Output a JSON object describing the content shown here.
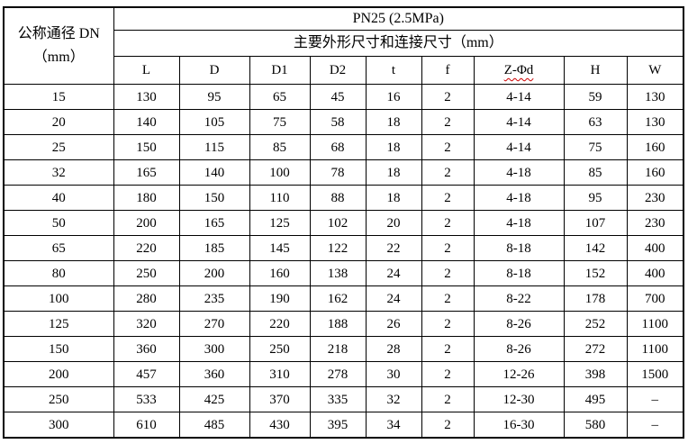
{
  "table": {
    "corner_header": {
      "line1": "公称通径 DN",
      "line2": "（mm）"
    },
    "pressure_header": "PN25 (2.5MPa)",
    "dimensions_header": "主要外形尺寸和连接尺寸（mm）",
    "columns": [
      "L",
      "D",
      "D1",
      "D2",
      "t",
      "f",
      "Z-Φd",
      "H",
      "W"
    ],
    "rows": [
      {
        "dn": "15",
        "values": [
          "130",
          "95",
          "65",
          "45",
          "16",
          "2",
          "4-14",
          "59",
          "130"
        ]
      },
      {
        "dn": "20",
        "values": [
          "140",
          "105",
          "75",
          "58",
          "18",
          "2",
          "4-14",
          "63",
          "130"
        ]
      },
      {
        "dn": "25",
        "values": [
          "150",
          "115",
          "85",
          "68",
          "18",
          "2",
          "4-14",
          "75",
          "160"
        ]
      },
      {
        "dn": "32",
        "values": [
          "165",
          "140",
          "100",
          "78",
          "18",
          "2",
          "4-18",
          "85",
          "160"
        ]
      },
      {
        "dn": "40",
        "values": [
          "180",
          "150",
          "110",
          "88",
          "18",
          "2",
          "4-18",
          "95",
          "230"
        ]
      },
      {
        "dn": "50",
        "values": [
          "200",
          "165",
          "125",
          "102",
          "20",
          "2",
          "4-18",
          "107",
          "230"
        ]
      },
      {
        "dn": "65",
        "values": [
          "220",
          "185",
          "145",
          "122",
          "22",
          "2",
          "8-18",
          "142",
          "400"
        ]
      },
      {
        "dn": "80",
        "values": [
          "250",
          "200",
          "160",
          "138",
          "24",
          "2",
          "8-18",
          "152",
          "400"
        ]
      },
      {
        "dn": "100",
        "values": [
          "280",
          "235",
          "190",
          "162",
          "24",
          "2",
          "8-22",
          "178",
          "700"
        ]
      },
      {
        "dn": "125",
        "values": [
          "320",
          "270",
          "220",
          "188",
          "26",
          "2",
          "8-26",
          "252",
          "1100"
        ]
      },
      {
        "dn": "150",
        "values": [
          "360",
          "300",
          "250",
          "218",
          "28",
          "2",
          "8-26",
          "272",
          "1100"
        ]
      },
      {
        "dn": "200",
        "values": [
          "457",
          "360",
          "310",
          "278",
          "30",
          "2",
          "12-26",
          "398",
          "1500"
        ]
      },
      {
        "dn": "250",
        "values": [
          "533",
          "425",
          "370",
          "335",
          "32",
          "2",
          "12-30",
          "495",
          "–"
        ]
      },
      {
        "dn": "300",
        "values": [
          "610",
          "485",
          "430",
          "395",
          "34",
          "2",
          "16-30",
          "580",
          "–"
        ]
      }
    ]
  },
  "colors": {
    "border": "#000000",
    "background": "#ffffff",
    "text": "#000000",
    "spellcheck_underline": "#cc0000"
  }
}
